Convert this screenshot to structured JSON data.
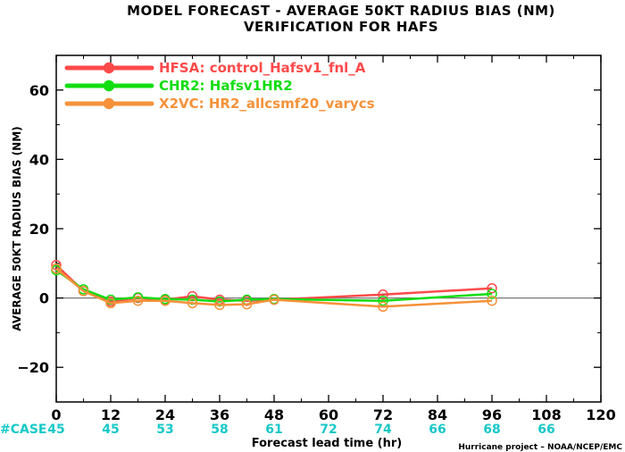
{
  "chart_data": {
    "type": "line",
    "title": "MODEL FORECAST - AVERAGE 50KT RADIUS BIAS (NM)",
    "subtitle": "VERIFICATION FOR HAFS",
    "xlabel": "Forecast lead time (hr)",
    "ylabel": "AVERAGE 50KT RADIUS BIAS (NM)",
    "xlim": [
      0,
      120
    ],
    "ylim": [
      -30,
      70
    ],
    "x_ticks": [
      0,
      12,
      24,
      36,
      48,
      60,
      72,
      84,
      96,
      108,
      120
    ],
    "y_ticks": [
      -20,
      0,
      20,
      40,
      60
    ],
    "x_tick_labels": [
      "0",
      "12",
      "24",
      "36",
      "48",
      "60",
      "72",
      "84",
      "96",
      "108",
      "120"
    ],
    "y_tick_labels": [
      "−20",
      "0",
      "20",
      "40",
      "60"
    ],
    "zero_line": true,
    "grid": false,
    "legend_position": "top-left",
    "series": [
      {
        "name": "HFSA: control_Hafsv1_fnl_A",
        "color": "#ff4a4a",
        "x": [
          0,
          6,
          12,
          18,
          24,
          30,
          36,
          42,
          48,
          72,
          96
        ],
        "y": [
          9.5,
          2.0,
          -1.0,
          0.0,
          -0.5,
          0.5,
          -0.5,
          -0.8,
          -0.5,
          1.0,
          2.8
        ]
      },
      {
        "name": "CHR2: Hafsv1HR2",
        "color": "#11dd11",
        "x": [
          0,
          6,
          12,
          18,
          24,
          30,
          36,
          42,
          48,
          72,
          96
        ],
        "y": [
          8.0,
          2.5,
          -0.5,
          0.2,
          -0.3,
          -0.5,
          -1.0,
          -0.5,
          -0.3,
          -0.8,
          1.2
        ]
      },
      {
        "name": "X2VC: HR2_allcsmf20_varycs",
        "color": "#f5923a",
        "x": [
          0,
          6,
          12,
          18,
          24,
          30,
          36,
          42,
          48,
          72,
          96
        ],
        "y": [
          8.5,
          2.0,
          -1.5,
          -0.8,
          -0.8,
          -1.5,
          -2.0,
          -1.8,
          -0.5,
          -2.5,
          -0.8
        ]
      }
    ],
    "case_label": "#CASE",
    "case_counts": [
      {
        "x": 0,
        "label": "45"
      },
      {
        "x": 12,
        "label": "45"
      },
      {
        "x": 24,
        "label": "53"
      },
      {
        "x": 36,
        "label": "58"
      },
      {
        "x": 48,
        "label": "61"
      },
      {
        "x": 60,
        "label": "72"
      },
      {
        "x": 72,
        "label": "74"
      },
      {
        "x": 84,
        "label": "66"
      },
      {
        "x": 96,
        "label": "68"
      },
      {
        "x": 108,
        "label": "66"
      }
    ],
    "credit": "Hurricane project – NOAA/NCEP/EMC"
  }
}
